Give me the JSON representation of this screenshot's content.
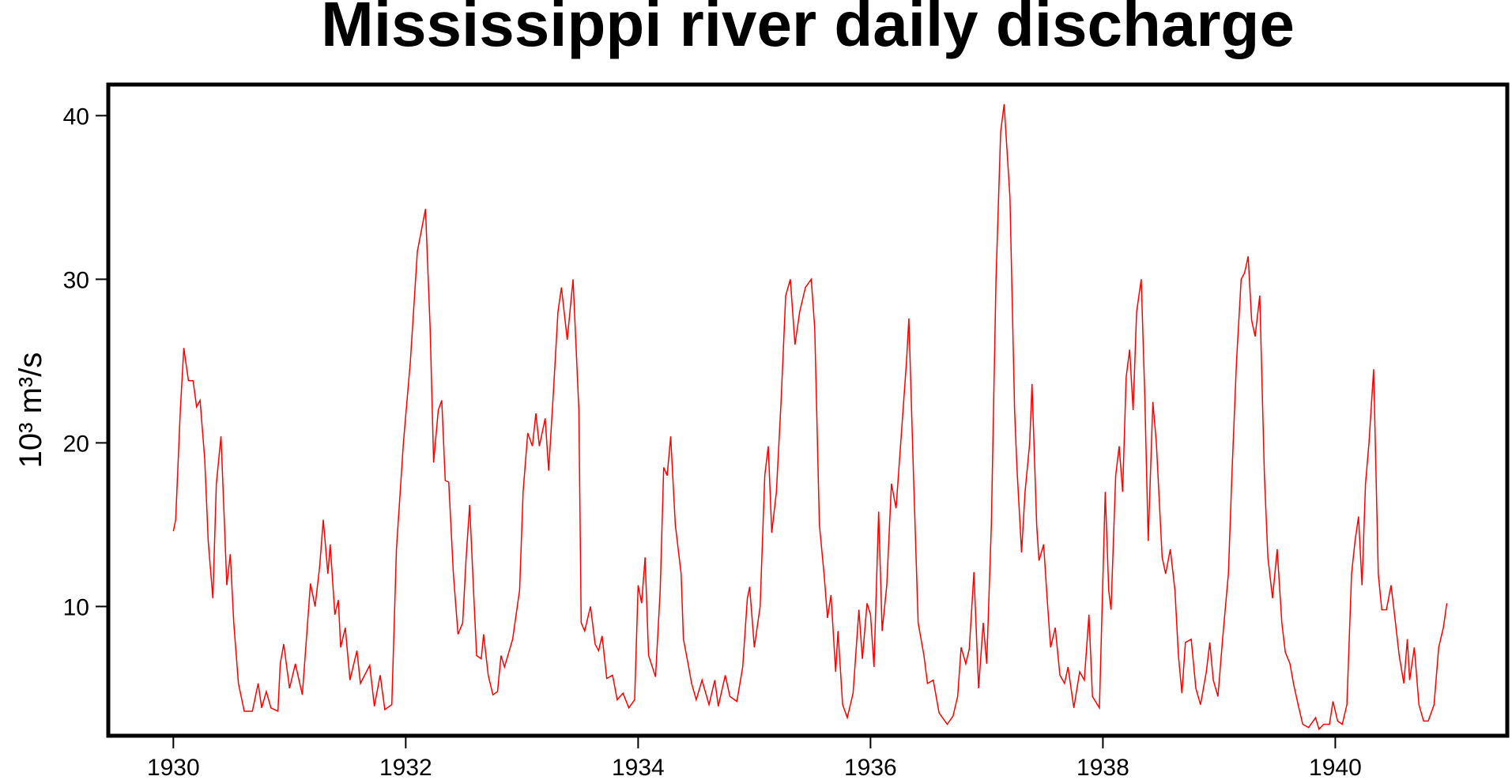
{
  "chart_data": {
    "type": "line",
    "title": "Mississippi river daily discharge",
    "ylabel": "10³ m³/s",
    "xlim": [
      1929.44,
      1941.48
    ],
    "ylim": [
      2.1,
      41.9
    ],
    "xticks": [
      1930,
      1932,
      1934,
      1936,
      1938,
      1940
    ],
    "yticks": [
      10,
      20,
      30,
      40
    ],
    "series": [
      {
        "name": "discharge",
        "color": "#ff0000",
        "x": [
          1930.0,
          1930.02,
          1930.06,
          1930.09,
          1930.13,
          1930.17,
          1930.2,
          1930.23,
          1930.27,
          1930.3,
          1930.34,
          1930.37,
          1930.41,
          1930.44,
          1930.46,
          1930.49,
          1930.52,
          1930.56,
          1930.61,
          1930.68,
          1930.73,
          1930.76,
          1930.8,
          1930.84,
          1930.9,
          1930.92,
          1930.95,
          1931.0,
          1931.05,
          1931.11,
          1931.15,
          1931.18,
          1931.22,
          1931.26,
          1931.29,
          1931.33,
          1931.35,
          1931.39,
          1931.42,
          1931.44,
          1931.48,
          1931.52,
          1931.58,
          1931.61,
          1931.69,
          1931.73,
          1931.78,
          1931.82,
          1931.88,
          1931.92,
          1931.98,
          1932.04,
          1932.1,
          1932.17,
          1932.21,
          1932.24,
          1932.28,
          1932.31,
          1932.34,
          1932.37,
          1932.41,
          1932.45,
          1932.49,
          1932.52,
          1932.55,
          1932.59,
          1932.61,
          1932.65,
          1932.67,
          1932.71,
          1932.75,
          1932.79,
          1932.82,
          1932.85,
          1932.92,
          1932.98,
          1933.01,
          1933.05,
          1933.09,
          1933.12,
          1933.15,
          1933.2,
          1933.23,
          1933.27,
          1933.31,
          1933.34,
          1933.39,
          1933.44,
          1933.49,
          1933.51,
          1933.54,
          1933.59,
          1933.63,
          1933.66,
          1933.69,
          1933.73,
          1933.78,
          1933.82,
          1933.87,
          1933.92,
          1933.97,
          1934.0,
          1934.03,
          1934.06,
          1934.09,
          1934.15,
          1934.19,
          1934.22,
          1934.25,
          1934.28,
          1934.32,
          1934.37,
          1934.39,
          1934.43,
          1934.46,
          1934.5,
          1934.55,
          1934.61,
          1934.66,
          1934.69,
          1934.75,
          1934.79,
          1934.85,
          1934.9,
          1934.94,
          1934.96,
          1935.0,
          1935.05,
          1935.09,
          1935.12,
          1935.15,
          1935.19,
          1935.23,
          1935.27,
          1935.31,
          1935.35,
          1935.39,
          1935.44,
          1935.49,
          1935.52,
          1935.56,
          1935.6,
          1935.63,
          1935.66,
          1935.7,
          1935.72,
          1935.76,
          1935.8,
          1935.85,
          1935.9,
          1935.93,
          1935.97,
          1936.0,
          1936.03,
          1936.07,
          1936.1,
          1936.14,
          1936.18,
          1936.22,
          1936.26,
          1936.31,
          1936.33,
          1936.37,
          1936.41,
          1936.46,
          1936.49,
          1936.54,
          1936.59,
          1936.66,
          1936.71,
          1936.75,
          1936.78,
          1936.82,
          1936.85,
          1936.89,
          1936.93,
          1936.97,
          1937.0,
          1937.04,
          1937.08,
          1937.12,
          1937.15,
          1937.2,
          1937.24,
          1937.26,
          1937.3,
          1937.33,
          1937.37,
          1937.39,
          1937.43,
          1937.45,
          1937.49,
          1937.52,
          1937.55,
          1937.59,
          1937.63,
          1937.67,
          1937.7,
          1937.75,
          1937.8,
          1937.84,
          1937.88,
          1937.91,
          1937.97,
          1938.02,
          1938.05,
          1938.07,
          1938.11,
          1938.14,
          1938.17,
          1938.2,
          1938.23,
          1938.26,
          1938.29,
          1938.33,
          1938.36,
          1938.39,
          1938.43,
          1938.46,
          1938.51,
          1938.54,
          1938.58,
          1938.62,
          1938.65,
          1938.68,
          1938.71,
          1938.76,
          1938.8,
          1938.84,
          1938.89,
          1938.92,
          1938.95,
          1938.99,
          1939.03,
          1939.08,
          1939.11,
          1939.15,
          1939.19,
          1939.22,
          1939.25,
          1939.28,
          1939.31,
          1939.35,
          1939.39,
          1939.42,
          1939.46,
          1939.5,
          1939.54,
          1939.57,
          1939.61,
          1939.64,
          1939.68,
          1939.72,
          1939.77,
          1939.83,
          1939.86,
          1939.9,
          1939.95,
          1939.98,
          1940.02,
          1940.06,
          1940.1,
          1940.14,
          1940.17,
          1940.2,
          1940.23,
          1940.26,
          1940.29,
          1940.33,
          1940.37,
          1940.4,
          1940.44,
          1940.48,
          1940.51,
          1940.55,
          1940.59,
          1940.62,
          1940.64,
          1940.68,
          1940.72,
          1940.76,
          1940.8,
          1940.85,
          1940.89,
          1940.93,
          1940.96
        ],
        "values": [
          14.6,
          15.3,
          22,
          25.8,
          23.8,
          23.8,
          22.2,
          22.6,
          19,
          14,
          10.5,
          17.5,
          20.4,
          15,
          11.3,
          13.2,
          9,
          5.3,
          3.6,
          3.6,
          5.3,
          3.8,
          4.8,
          3.8,
          3.6,
          6.5,
          7.7,
          5,
          6.5,
          4.6,
          8.5,
          11.4,
          10,
          12.5,
          15.3,
          12,
          13.8,
          9.5,
          10.4,
          7.5,
          8.7,
          5.5,
          7.3,
          5.3,
          6.4,
          3.9,
          5.8,
          3.7,
          4,
          13.5,
          20,
          25,
          31.7,
          34.3,
          27,
          18.8,
          22,
          22.6,
          17.7,
          17.6,
          12,
          8.3,
          9,
          13,
          16.2,
          10,
          7,
          6.8,
          8.3,
          5.8,
          4.6,
          4.8,
          7,
          6.3,
          8,
          11,
          17,
          20.6,
          19.8,
          21.8,
          19.8,
          21.5,
          18.3,
          23,
          28,
          29.5,
          26.3,
          30,
          22,
          9,
          8.5,
          10,
          7.7,
          7.3,
          8.2,
          5.6,
          5.8,
          4.3,
          4.7,
          3.8,
          4.3,
          11.3,
          10.2,
          13,
          7,
          5.7,
          11,
          18.5,
          18,
          20.4,
          15,
          12,
          8,
          6.5,
          5.3,
          4.3,
          5.5,
          4,
          5.5,
          3.9,
          5.8,
          4.5,
          4.2,
          6.3,
          10.5,
          11.2,
          7.5,
          10,
          18,
          19.8,
          14.5,
          17,
          22.5,
          29,
          30,
          26,
          28,
          29.5,
          30,
          27,
          15,
          12,
          9.3,
          10.7,
          6,
          8.5,
          4,
          3.2,
          4.7,
          9.8,
          6.8,
          10.2,
          9.5,
          6.3,
          15.8,
          8.5,
          11.3,
          17.5,
          16,
          20,
          25,
          27.6,
          18,
          9,
          7,
          5.3,
          5.5,
          3.5,
          2.8,
          3.3,
          4.5,
          7.5,
          6.5,
          7.4,
          12.1,
          5,
          9,
          6.5,
          15,
          30,
          39,
          40.7,
          35,
          22,
          18.5,
          13.3,
          17,
          20,
          23.6,
          15,
          12.8,
          13.8,
          10.5,
          7.5,
          8.7,
          5.8,
          5.3,
          6.3,
          3.8,
          6,
          5.5,
          9.5,
          4.5,
          3.8,
          17,
          11,
          9.8,
          18,
          19.8,
          17,
          24,
          25.7,
          22,
          28,
          30,
          23,
          14,
          22.5,
          20,
          13,
          12,
          13.5,
          11,
          7,
          4.7,
          7.8,
          8,
          5,
          4,
          6,
          7.8,
          5.5,
          4.5,
          8,
          12,
          18,
          25,
          30,
          30.4,
          31.4,
          27.5,
          26.5,
          29,
          18,
          13,
          10.5,
          13.5,
          9,
          7.2,
          6.5,
          5.3,
          4,
          2.8,
          2.6,
          3.2,
          2.5,
          2.8,
          2.8,
          4.2,
          3,
          2.8,
          4,
          12,
          14,
          15.5,
          11.3,
          17.5,
          20,
          24.5,
          12,
          9.8,
          9.8,
          11.3,
          9.5,
          7,
          5.3,
          8,
          5.5,
          7.5,
          4,
          3,
          3,
          4,
          7.5,
          8.7,
          10.2
        ]
      }
    ]
  }
}
